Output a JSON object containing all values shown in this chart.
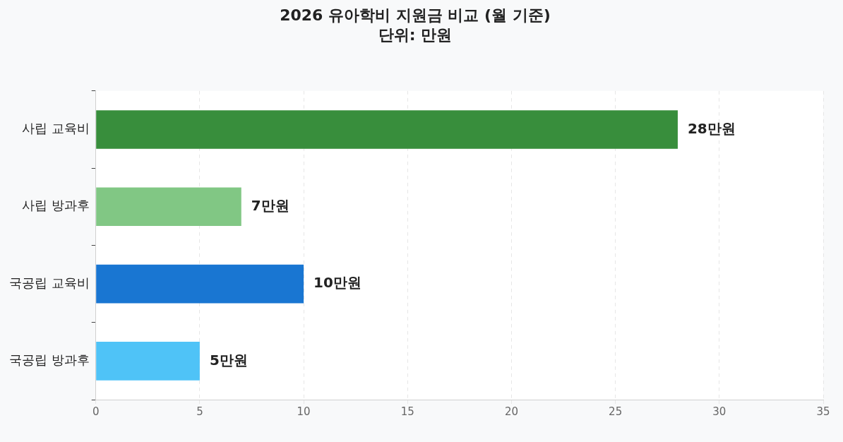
{
  "chart_data": {
    "type": "bar",
    "orientation": "horizontal",
    "title": "2026 유아학비 지원금 비교 (월 기준)",
    "subtitle": "단위: 만원",
    "categories": [
      "사립 교육비",
      "사립 방과후",
      "국공립 교육비",
      "국공립 방과후"
    ],
    "values": [
      28,
      7,
      10,
      5
    ],
    "colors": [
      "#388e3c",
      "#81c784",
      "#1976d2",
      "#4fc3f7"
    ],
    "value_labels": [
      "28만원",
      "7만원",
      "10만원",
      "5만원"
    ],
    "xlim": [
      0,
      35
    ],
    "xticks": [
      0,
      5,
      10,
      15,
      20,
      25,
      30,
      35
    ],
    "grid": "x",
    "legend": false
  }
}
